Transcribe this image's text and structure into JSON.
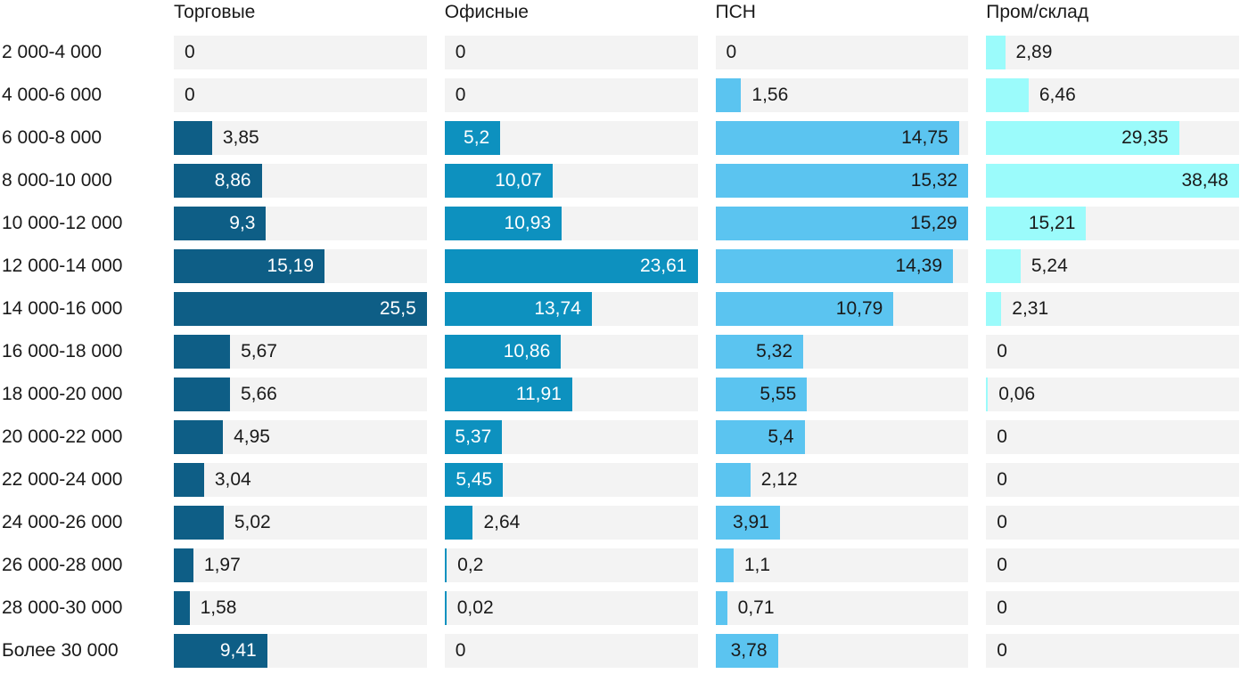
{
  "chart_data": {
    "type": "bar",
    "orientation": "horizontal",
    "scaling": "per-column-max",
    "decimal_separator": ",",
    "track_color": "#f3f3f3",
    "text_color": "#1a1a1a",
    "categories": [
      "2 000-4 000",
      "4 000-6 000",
      "6 000-8 000",
      "8 000-10 000",
      "10 000-12 000",
      "12 000-14 000",
      "14 000-16 000",
      "16 000-18 000",
      "18 000-20 000",
      "20 000-22 000",
      "22 000-24 000",
      "24 000-26 000",
      "26 000-28 000",
      "28 000-30 000",
      "Более 30 000"
    ],
    "series": [
      {
        "name": "Торговые",
        "color": "#0e5e86",
        "label_inside_color": "#ffffff",
        "values": [
          0,
          0,
          3.85,
          8.86,
          9.3,
          15.19,
          25.5,
          5.67,
          5.66,
          4.95,
          3.04,
          5.02,
          1.97,
          1.58,
          9.41
        ],
        "labels": [
          "0",
          "0",
          "3,85",
          "8,86",
          "9,3",
          "15,19",
          "25,5",
          "5,67",
          "5,66",
          "4,95",
          "3,04",
          "5,02",
          "1,97",
          "1,58",
          "9,41"
        ],
        "inside": [
          false,
          false,
          false,
          true,
          true,
          true,
          true,
          false,
          false,
          false,
          false,
          false,
          false,
          false,
          true
        ]
      },
      {
        "name": "Офисные",
        "color": "#0d91bf",
        "label_inside_color": "#ffffff",
        "values": [
          0,
          0,
          5.2,
          10.07,
          10.93,
          23.61,
          13.74,
          10.86,
          11.91,
          5.37,
          5.45,
          2.64,
          0.2,
          0.02,
          0
        ],
        "labels": [
          "0",
          "0",
          "5,2",
          "10,07",
          "10,93",
          "23,61",
          "13,74",
          "10,86",
          "11,91",
          "5,37",
          "5,45",
          "2,64",
          "0,2",
          "0,02",
          "0"
        ],
        "inside": [
          false,
          false,
          true,
          true,
          true,
          true,
          true,
          true,
          true,
          true,
          true,
          false,
          false,
          false,
          false
        ]
      },
      {
        "name": "ПСН",
        "color": "#5bc4f0",
        "label_inside_color": "#1a1a1a",
        "values": [
          0,
          1.56,
          14.75,
          15.32,
          15.29,
          14.39,
          10.79,
          5.32,
          5.55,
          5.4,
          2.12,
          3.91,
          1.1,
          0.71,
          3.78
        ],
        "labels": [
          "0",
          "1,56",
          "14,75",
          "15,32",
          "15,29",
          "14,39",
          "10,79",
          "5,32",
          "5,55",
          "5,4",
          "2,12",
          "3,91",
          "1,1",
          "0,71",
          "3,78"
        ],
        "inside": [
          false,
          false,
          true,
          true,
          true,
          true,
          true,
          true,
          true,
          true,
          false,
          true,
          false,
          false,
          true
        ]
      },
      {
        "name": "Пром/склад",
        "color": "#9bfbfb",
        "label_inside_color": "#1a1a1a",
        "values": [
          2.89,
          6.46,
          29.35,
          38.48,
          15.21,
          5.24,
          2.31,
          0,
          0.06,
          0,
          0,
          0,
          0,
          0,
          0
        ],
        "labels": [
          "2,89",
          "6,46",
          "29,35",
          "38,48",
          "15,21",
          "5,24",
          "2,31",
          "0",
          "0,06",
          "0",
          "0",
          "0",
          "0",
          "0",
          "0"
        ],
        "inside": [
          false,
          false,
          true,
          true,
          true,
          false,
          false,
          false,
          false,
          false,
          false,
          false,
          false,
          false,
          false
        ]
      }
    ]
  }
}
